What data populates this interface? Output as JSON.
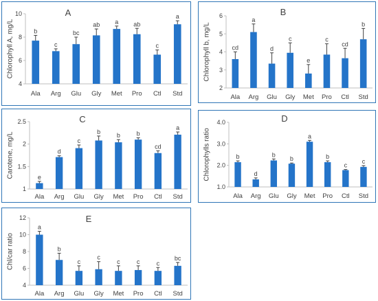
{
  "colors": {
    "bar": "#2474C9",
    "frame": "#2E75B6",
    "axis": "#BFBFBF",
    "text": "#404040",
    "error": "#404040"
  },
  "chart_data": [
    {
      "id": "A",
      "type": "bar",
      "title": "A",
      "ylabel": "Chlorophyll A, mg/L",
      "ylim": [
        4,
        10
      ],
      "yticks": [
        4,
        6,
        8,
        10
      ],
      "tick_format": "int",
      "grid": false,
      "categories": [
        "Ala",
        "Arg",
        "Glu",
        "Gly",
        "Met",
        "Pro",
        "Ctl",
        "Std"
      ],
      "values": [
        7.7,
        6.8,
        7.4,
        8.15,
        8.7,
        8.25,
        6.5,
        9.1
      ],
      "errors": [
        0.45,
        0.2,
        0.6,
        0.55,
        0.25,
        0.5,
        0.4,
        0.3
      ],
      "letters": [
        "b",
        "c",
        "bc",
        "ab",
        "a",
        "ab",
        "c",
        "a"
      ]
    },
    {
      "id": "B",
      "type": "bar",
      "title": "B",
      "ylabel": "Chlorophyll b, mg/L",
      "ylim": [
        2,
        6
      ],
      "yticks": [
        2,
        3,
        4,
        5,
        6
      ],
      "tick_format": "int",
      "grid": false,
      "categories": [
        "Ala",
        "Arg",
        "Glu",
        "Gly",
        "Met",
        "Pro",
        "Ctl",
        "Std"
      ],
      "values": [
        3.6,
        5.1,
        3.35,
        3.95,
        2.8,
        3.85,
        3.65,
        4.7
      ],
      "errors": [
        0.4,
        0.45,
        0.6,
        0.55,
        0.5,
        0.6,
        0.55,
        0.6
      ],
      "letters": [
        "cd",
        "a",
        "d",
        "c",
        "e",
        "c",
        "cd",
        "b"
      ]
    },
    {
      "id": "C",
      "type": "bar",
      "title": "C",
      "ylabel": "Carotene, mg/L",
      "ylim": [
        1,
        2.5
      ],
      "yticks": [
        1,
        1.5,
        2,
        2.5
      ],
      "tick_format": "auto",
      "grid": false,
      "categories": [
        "Ala",
        "Arg",
        "Glu",
        "Gly",
        "Met",
        "Pro",
        "Ctl",
        "Std"
      ],
      "values": [
        1.13,
        1.71,
        1.91,
        2.08,
        2.04,
        2.1,
        1.8,
        2.21
      ],
      "errors": [
        0.04,
        0.03,
        0.07,
        0.1,
        0.06,
        0.04,
        0.05,
        0.06
      ],
      "letters": [
        "e",
        "d",
        "c",
        "b",
        "b",
        "b",
        "cd",
        "a"
      ]
    },
    {
      "id": "D",
      "type": "bar",
      "title": "D",
      "ylabel": "Chlorophylls ratio",
      "ylim": [
        1,
        4
      ],
      "yticks": [
        1,
        2,
        3,
        4
      ],
      "tick_format": "fixed1",
      "grid": false,
      "categories": [
        "Ala",
        "Arg",
        "Glu",
        "Gly",
        "Met",
        "Pro",
        "Ctl",
        "Std"
      ],
      "values": [
        2.15,
        1.35,
        2.23,
        2.08,
        3.1,
        2.15,
        1.78,
        1.93
      ],
      "errors": [
        0.06,
        0.07,
        0.07,
        0.03,
        0.06,
        0.06,
        0.03,
        0.06
      ],
      "letters": [
        "b",
        "d",
        "b",
        "b",
        "a",
        "b",
        "c",
        "c"
      ]
    },
    {
      "id": "E",
      "type": "bar",
      "title": "E",
      "ylabel": "Chl/car ratio",
      "ylim": [
        4,
        12
      ],
      "yticks": [
        4,
        6,
        8,
        10,
        12
      ],
      "tick_format": "int",
      "grid": false,
      "categories": [
        "Ala",
        "Arg",
        "Glu",
        "Gly",
        "Met",
        "Pro",
        "Ctl",
        "Std"
      ],
      "values": [
        10.0,
        7.0,
        5.7,
        5.9,
        5.7,
        5.8,
        5.7,
        6.3
      ],
      "errors": [
        0.4,
        0.8,
        0.6,
        0.9,
        0.6,
        0.5,
        0.4,
        0.4
      ],
      "letters": [
        "a",
        "b",
        "c",
        "c",
        "c",
        "c",
        "c",
        "bc"
      ]
    }
  ]
}
